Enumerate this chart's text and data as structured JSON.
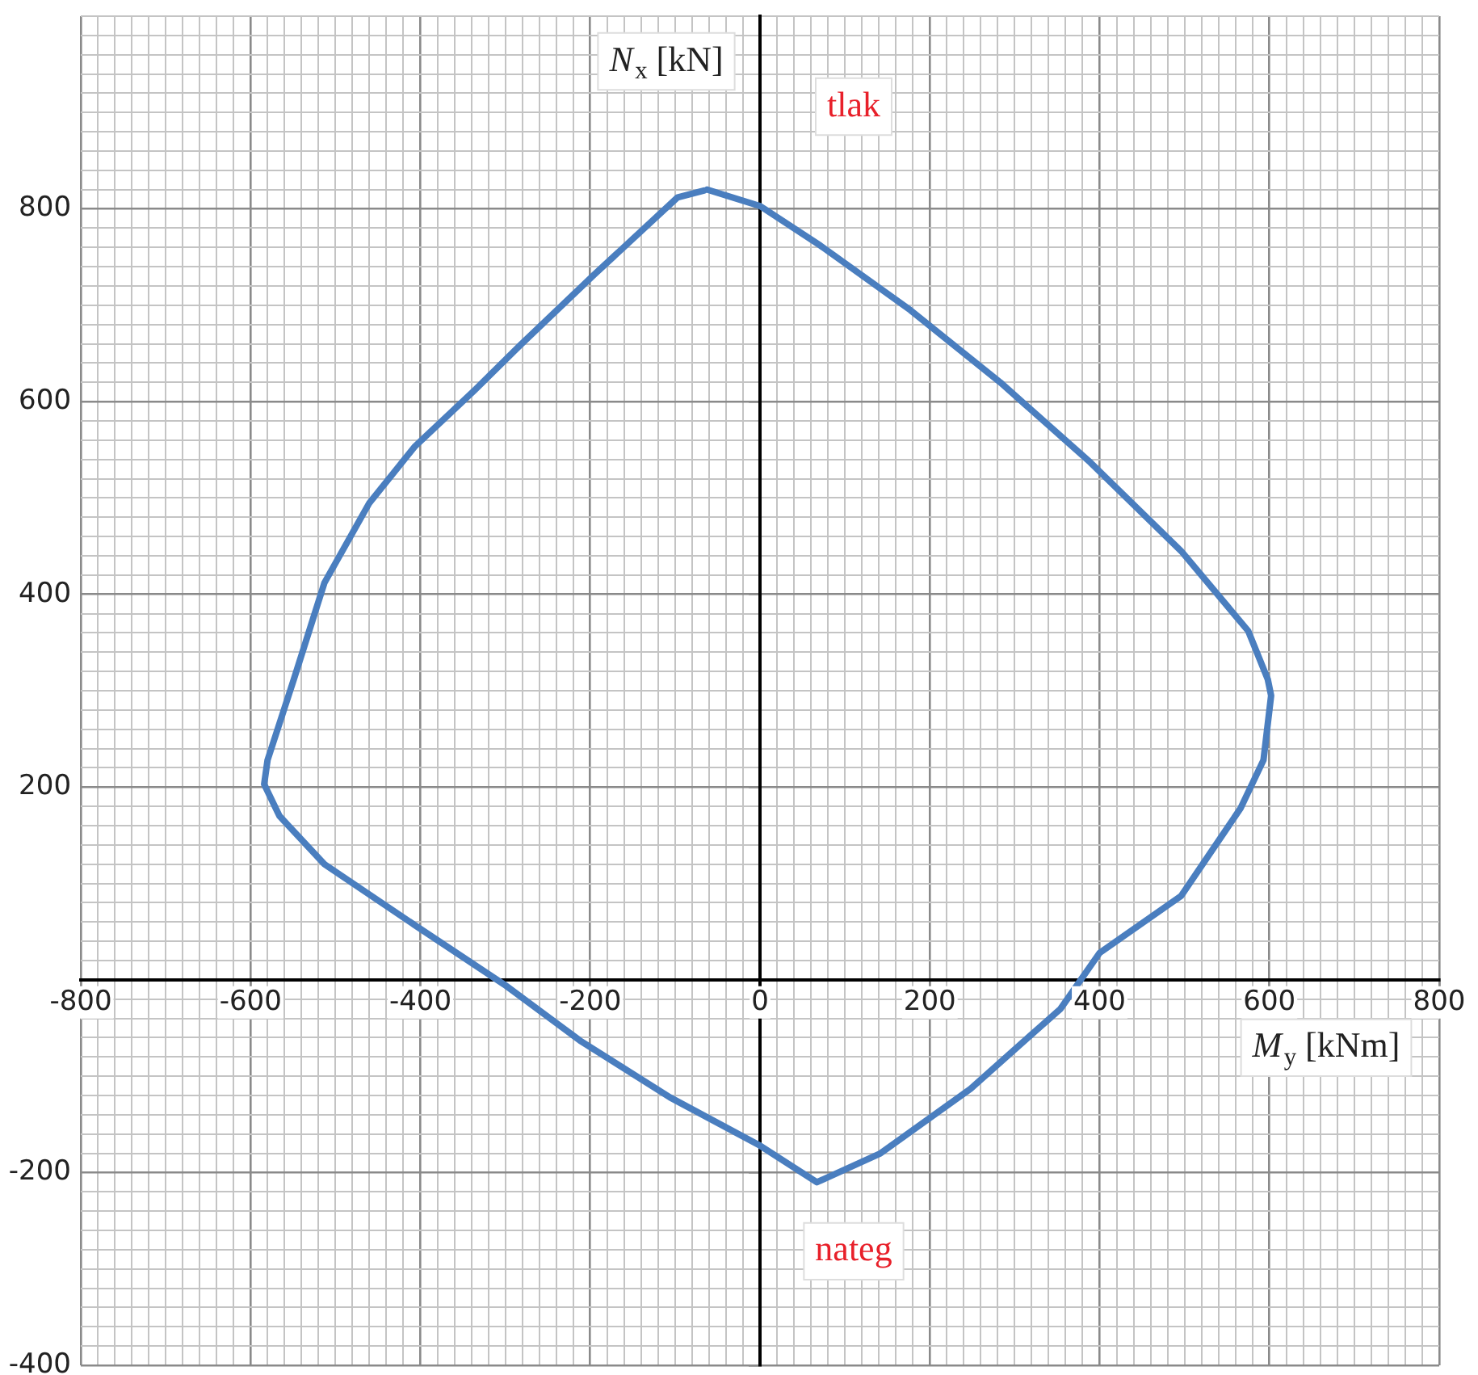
{
  "chart_data": {
    "type": "line",
    "xlabel": "M$_{y}$ [kNm]",
    "ylabel": "N$_{x}$ [kN]",
    "annotations": [
      "tlak",
      "nateg"
    ],
    "series": [
      {
        "color": "#4a7ebf",
        "x": [
          -62,
          0,
          71,
          177,
          283,
          389,
          496,
          575,
          598,
          602,
          593,
          566,
          496,
          400,
          354,
          248,
          142,
          67,
          0,
          -106,
          -212,
          -301,
          -407,
          -513,
          -566,
          -584,
          -580,
          -549,
          -513,
          -460,
          -407,
          -336,
          -283,
          -195,
          -97,
          -66
        ],
        "values": [
          820,
          803,
          762,
          695,
          620,
          537,
          445,
          362,
          312,
          295,
          228,
          178,
          87,
          28,
          -30,
          -113,
          -180,
          -210,
          -172,
          -122,
          -63,
          -5,
          57,
          120,
          170,
          203,
          228,
          312,
          412,
          495,
          553,
          612,
          658,
          732,
          812,
          819
        ]
      }
    ],
    "marker": "none",
    "grid": true,
    "xlim": [
      -800,
      800
    ],
    "ylim": [
      -400,
      1000
    ],
    "xticks": [
      -800,
      {
        "value": -780,
        "label": null
      },
      {
        "value": -760,
        "label": null
      },
      {
        "value": -740,
        "label": null
      },
      {
        "value": -720,
        "label": null
      },
      {
        "value": -700,
        "label": null
      },
      {
        "value": -680,
        "label": null
      },
      {
        "value": -660,
        "label": null
      },
      {
        "value": -640,
        "label": null
      },
      {
        "value": -620,
        "label": null
      },
      -600,
      {
        "value": -580,
        "label": null
      },
      {
        "value": -560,
        "label": null
      },
      {
        "value": -540,
        "label": null
      },
      {
        "value": -520,
        "label": null
      },
      {
        "value": -500,
        "label": null
      },
      {
        "value": -480,
        "label": null
      },
      {
        "value": -460,
        "label": null
      },
      {
        "value": -440,
        "label": null
      },
      {
        "value": -420,
        "label": null
      },
      -400,
      {
        "value": -380,
        "label": null
      },
      {
        "value": -360,
        "label": null
      },
      {
        "value": -340,
        "label": null
      },
      {
        "value": -320,
        "label": null
      },
      {
        "value": -300,
        "label": null
      },
      {
        "value": -280,
        "label": null
      },
      {
        "value": -260,
        "label": null
      },
      {
        "value": -240,
        "label": null
      },
      {
        "value": -220,
        "label": null
      },
      -200,
      {
        "value": -180,
        "label": null
      },
      {
        "value": -160,
        "label": null
      },
      {
        "value": -140,
        "label": null
      },
      {
        "value": -120,
        "label": null
      },
      {
        "value": -100,
        "label": null
      },
      {
        "value": -80,
        "label": null
      },
      {
        "value": -60,
        "label": null
      },
      {
        "value": -40,
        "label": null
      },
      {
        "value": -20,
        "label": null
      },
      0,
      {
        "value": 20,
        "label": null
      },
      {
        "value": 40,
        "label": null
      },
      {
        "value": 60,
        "label": null
      },
      {
        "value": 80,
        "label": null
      },
      {
        "value": 100,
        "label": null
      },
      {
        "value": 120,
        "label": null
      },
      {
        "value": 140,
        "label": null
      },
      {
        "value": 160,
        "label": null
      },
      {
        "value": 180,
        "label": null
      },
      200,
      {
        "value": 220,
        "label": null
      },
      {
        "value": 240,
        "label": null
      },
      {
        "value": 260,
        "label": null
      },
      {
        "value": 280,
        "label": null
      },
      {
        "value": 300,
        "label": null
      },
      {
        "value": 320,
        "label": null
      },
      {
        "value": 340,
        "label": null
      },
      {
        "value": 360,
        "label": null
      },
      {
        "value": 380,
        "label": null
      },
      400,
      {
        "value": 420,
        "label": null
      },
      {
        "value": 440,
        "label": null
      },
      {
        "value": 460,
        "label": null
      },
      {
        "value": 480,
        "label": null
      },
      {
        "value": 500,
        "label": null
      },
      {
        "value": 520,
        "label": null
      },
      {
        "value": 540,
        "label": null
      },
      {
        "value": 560,
        "label": null
      },
      {
        "value": 580,
        "label": null
      },
      600,
      {
        "value": 620,
        "label": null
      },
      {
        "value": 640,
        "label": null
      },
      {
        "value": 660,
        "label": null
      },
      {
        "value": 680,
        "label": null
      },
      {
        "value": 700,
        "label": null
      },
      {
        "value": 720,
        "label": null
      },
      {
        "value": 740,
        "label": null
      },
      {
        "value": 760,
        "label": null
      },
      {
        "value": 780,
        "label": null
      },
      800
    ],
    "yticks": [
      -400,
      {
        "value": -380,
        "label": null
      },
      {
        "value": -360,
        "label": null
      },
      {
        "value": -340,
        "label": null
      },
      {
        "value": -320,
        "label": null
      },
      {
        "value": -300,
        "label": null
      },
      {
        "value": -280,
        "label": null
      },
      {
        "value": -260,
        "label": null
      },
      {
        "value": -240,
        "label": null
      },
      {
        "value": -220,
        "label": null
      },
      -200,
      {
        "value": -180,
        "label": null
      },
      {
        "value": -160,
        "label": null
      },
      {
        "value": -140,
        "label": null
      },
      {
        "value": -120,
        "label": null
      },
      {
        "value": -100,
        "label": null
      },
      {
        "value": -80,
        "label": null
      },
      {
        "value": -60,
        "label": null
      },
      {
        "value": -40,
        "label": null
      },
      {
        "value": -20,
        "label": null
      },
      {
        "value": 0,
        "label": null
      },
      {
        "value": 20,
        "label": null
      },
      {
        "value": 40,
        "label": null
      },
      {
        "value": 60,
        "label": null
      },
      {
        "value": 80,
        "label": null
      },
      {
        "value": 100,
        "label": null
      },
      {
        "value": 120,
        "label": null
      },
      {
        "value": 140,
        "label": null
      },
      {
        "value": 160,
        "label": null
      },
      {
        "value": 180,
        "label": null
      },
      200,
      {
        "value": 220,
        "label": null
      },
      {
        "value": 240,
        "label": null
      },
      {
        "value": 260,
        "label": null
      },
      {
        "value": 280,
        "label": null
      },
      {
        "value": 300,
        "label": null
      },
      {
        "value": 320,
        "label": null
      },
      {
        "value": 340,
        "label": null
      },
      {
        "value": 360,
        "label": null
      },
      {
        "value": 380,
        "label": null
      },
      400,
      {
        "value": 420,
        "label": null
      },
      {
        "value": 440,
        "label": null
      },
      {
        "value": 460,
        "label": null
      },
      {
        "value": 480,
        "label": null
      },
      {
        "value": 500,
        "label": null
      },
      {
        "value": 520,
        "label": null
      },
      {
        "value": 540,
        "label": null
      },
      {
        "value": 560,
        "label": null
      },
      {
        "value": 580,
        "label": null
      },
      600,
      {
        "value": 620,
        "label": null
      },
      {
        "value": 640,
        "label": null
      },
      {
        "value": 660,
        "label": null
      },
      {
        "value": 680,
        "label": null
      },
      {
        "value": 700,
        "label": null
      },
      {
        "value": 720,
        "label": null
      },
      {
        "value": 740,
        "label": null
      },
      {
        "value": 760,
        "label": null
      },
      {
        "value": 780,
        "label": null
      },
      800,
      {
        "value": 820,
        "label": null
      },
      {
        "value": 840,
        "label": null
      },
      {
        "value": 860,
        "label": null
      },
      {
        "value": 880,
        "label": null
      },
      {
        "value": 900,
        "label": null
      },
      {
        "value": 920,
        "label": null
      },
      {
        "value": 940,
        "label": null
      },
      {
        "value": 960,
        "label": null
      },
      {
        "value": 980,
        "label": null
      },
      {
        "value": 1000,
        "label": null
      }
    ]
  }
}
